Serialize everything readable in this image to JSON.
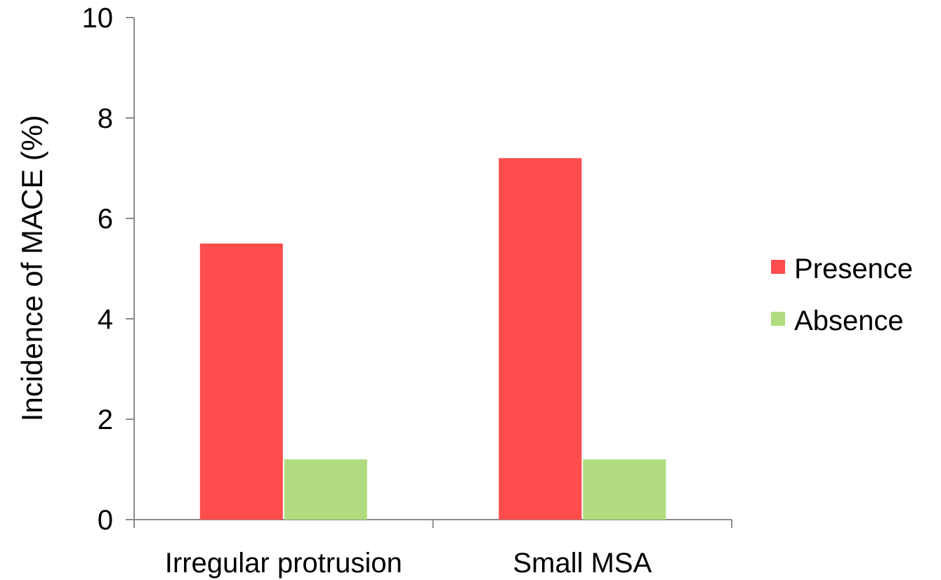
{
  "chart_data": {
    "type": "bar",
    "title": "",
    "xlabel": "",
    "ylabel": "Incidence of MACE (%)",
    "categories": [
      "Irregular protrusion",
      "Small MSA"
    ],
    "series": [
      {
        "name": "Presence",
        "values": [
          5.5,
          7.2
        ],
        "color": "#ff4d4d"
      },
      {
        "name": "Absence",
        "values": [
          1.2,
          1.2
        ],
        "color": "#b0dc7f"
      }
    ],
    "ylim": [
      0,
      10
    ],
    "yticks": [
      0,
      2,
      4,
      6,
      8,
      10
    ],
    "grid": false,
    "legend_position": "right"
  }
}
